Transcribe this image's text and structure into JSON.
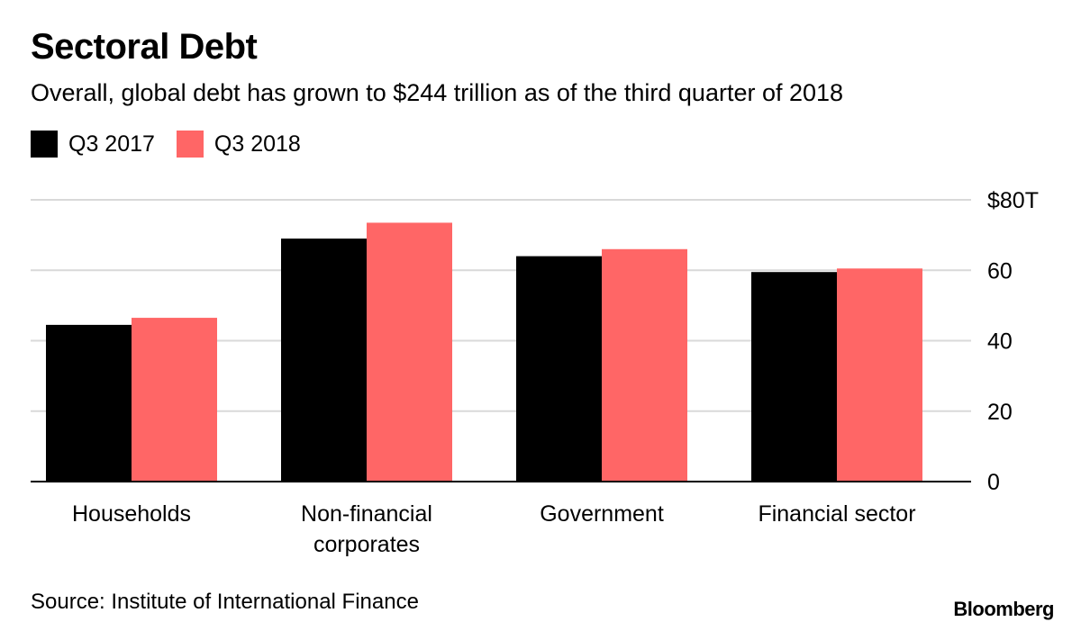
{
  "chart_data": {
    "type": "bar",
    "title": "Sectoral Debt",
    "subtitle": "Overall, global debt has grown to $244 trillion as of the third quarter of 2018",
    "categories": [
      [
        "Households"
      ],
      [
        "Non-financial",
        "corporates"
      ],
      [
        "Government"
      ],
      [
        "Financial sector"
      ]
    ],
    "series": [
      {
        "name": "Q3 2017",
        "color": "#000000",
        "values": [
          44.5,
          69,
          64,
          59.5
        ]
      },
      {
        "name": "Q3 2018",
        "color": "#ff6666",
        "values": [
          46.5,
          73.5,
          66,
          60.5
        ]
      }
    ],
    "ylim": [
      0,
      80
    ],
    "yticks": [
      0,
      20,
      40,
      60,
      80
    ],
    "ytick_labels": [
      "0",
      "20",
      "40",
      "60",
      "$80T"
    ],
    "y_axis_side": "right",
    "grid": true,
    "legend_position": "top-left",
    "source": "Source: Institute of International Finance",
    "brand": "Bloomberg"
  }
}
